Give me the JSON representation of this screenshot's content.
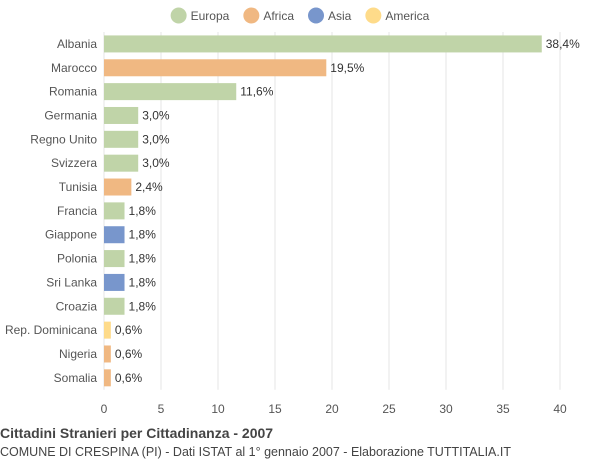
{
  "chart_data": {
    "type": "bar",
    "orientation": "horizontal",
    "title": "Cittadini Stranieri per Cittadinanza - 2007",
    "subtitle": "COMUNE DI CRESPINA (PI) - Dati ISTAT al 1° gennaio 2007 - Elaborazione TUTTITALIA.IT",
    "xlim": [
      0,
      40
    ],
    "xticks": [
      0,
      5,
      10,
      15,
      20,
      25,
      30,
      35,
      40
    ],
    "grid": true,
    "legend_position": "top",
    "legend": [
      {
        "name": "Europa",
        "color": "#c0d4a8"
      },
      {
        "name": "Africa",
        "color": "#f0b882"
      },
      {
        "name": "Asia",
        "color": "#7896cc"
      },
      {
        "name": "America",
        "color": "#fedb8a"
      }
    ],
    "categories": [
      "Albania",
      "Marocco",
      "Romania",
      "Germania",
      "Regno Unito",
      "Svizzera",
      "Tunisia",
      "Francia",
      "Giappone",
      "Polonia",
      "Sri Lanka",
      "Croazia",
      "Rep. Dominicana",
      "Nigeria",
      "Somalia"
    ],
    "values": [
      38.4,
      19.5,
      11.6,
      3.0,
      3.0,
      3.0,
      2.4,
      1.8,
      1.8,
      1.8,
      1.8,
      1.8,
      0.6,
      0.6,
      0.6
    ],
    "value_labels": [
      "38,4%",
      "19,5%",
      "11,6%",
      "3,0%",
      "3,0%",
      "3,0%",
      "2,4%",
      "1,8%",
      "1,8%",
      "1,8%",
      "1,8%",
      "1,8%",
      "0,6%",
      "0,6%",
      "0,6%"
    ],
    "groups": [
      "Europa",
      "Africa",
      "Europa",
      "Europa",
      "Europa",
      "Europa",
      "Africa",
      "Europa",
      "Asia",
      "Europa",
      "Asia",
      "Europa",
      "America",
      "Africa",
      "Africa"
    ]
  }
}
